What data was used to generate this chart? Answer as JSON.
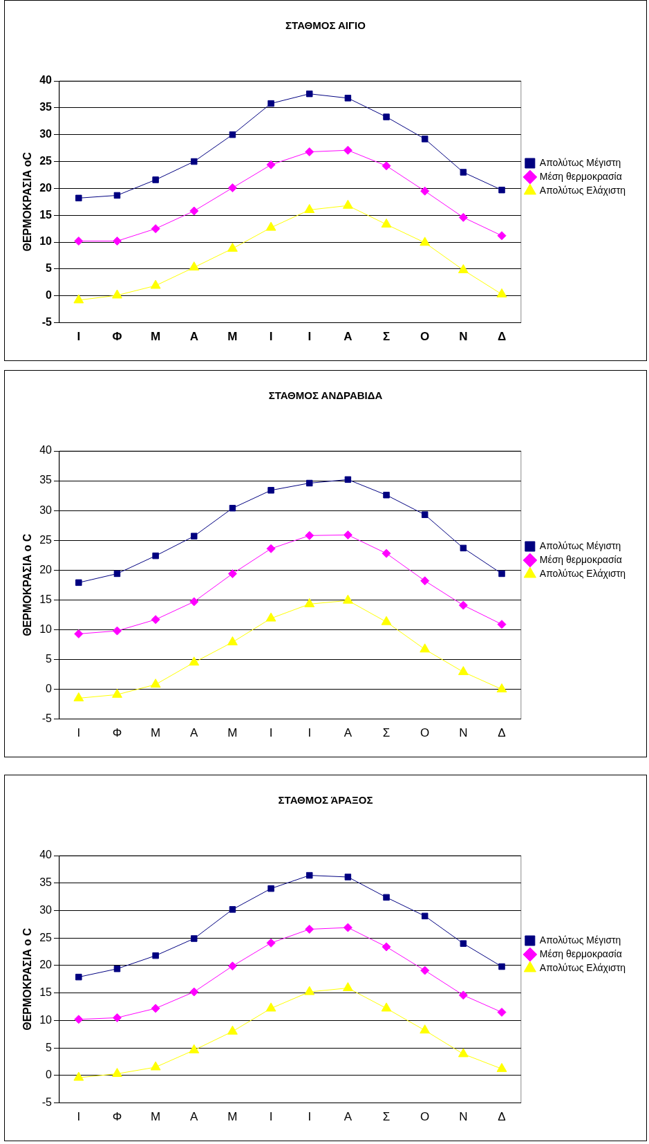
{
  "chart_data": [
    {
      "type": "line",
      "title": "ΣΤΑΘΜΟΣ ΑΙΓΙΟ",
      "ylabel": "ΘΕΡΜΟΚΡΑΣΙΑ oC",
      "categories": [
        "Ι",
        "Φ",
        "Μ",
        "Α",
        "Μ",
        "Ι",
        "Ι",
        "Α",
        "Σ",
        "Ο",
        "Ν",
        "Δ"
      ],
      "series": [
        {
          "name": "Απολύτως Μέγιστη",
          "color": "#000080",
          "marker": "square",
          "values": [
            18.2,
            18.7,
            21.6,
            25,
            30,
            35.8,
            37.6,
            36.8,
            33.3,
            29.2,
            23,
            19.7
          ]
        },
        {
          "name": "Μέση θερμοκρασία",
          "color": "#ff00ff",
          "marker": "diamond",
          "values": [
            10.2,
            10.2,
            12.5,
            15.8,
            20.1,
            24.4,
            26.8,
            27.1,
            24.2,
            19.5,
            14.6,
            11.2
          ]
        },
        {
          "name": "Απολύτως Ελάχιστη",
          "color": "#ffff00",
          "marker": "triangle",
          "values": [
            -0.8,
            0.1,
            1.9,
            5.3,
            8.8,
            12.7,
            16,
            16.8,
            13.3,
            9.9,
            4.8,
            0.3
          ]
        }
      ],
      "ylim": [
        -5,
        40
      ],
      "yticks": [
        -5,
        0,
        5,
        10,
        15,
        20,
        25,
        30,
        35,
        40
      ],
      "grid": "y",
      "legend": "right"
    },
    {
      "type": "line",
      "title": "ΣΤΑΘΜΟΣ ΑΝΔΡΑΒΙΔΑ",
      "ylabel": "ΘΕΡΜΟΚΡΑΣΙΑ o C",
      "categories": [
        "Ι",
        "Φ",
        "Μ",
        "Α",
        "Μ",
        "Ι",
        "Ι",
        "Α",
        "Σ",
        "Ο",
        "Ν",
        "Δ"
      ],
      "series": [
        {
          "name": "Απολύτως Μέγιστη",
          "color": "#000080",
          "marker": "square",
          "values": [
            17.9,
            19.4,
            22.4,
            25.7,
            30.4,
            33.4,
            34.6,
            35.2,
            32.6,
            29.3,
            23.7,
            19.4
          ]
        },
        {
          "name": "Μέση θερμοκρασία",
          "color": "#ff00ff",
          "marker": "diamond",
          "values": [
            9.3,
            9.8,
            11.7,
            14.7,
            19.4,
            23.6,
            25.8,
            25.9,
            22.8,
            18.2,
            14.1,
            10.9
          ]
        },
        {
          "name": "Απολύτως Ελάχιστη",
          "color": "#ffff00",
          "marker": "triangle",
          "values": [
            -1.5,
            -0.9,
            0.8,
            4.5,
            7.9,
            11.9,
            14.3,
            14.9,
            11.3,
            6.7,
            2.9,
            0
          ]
        }
      ],
      "ylim": [
        -5,
        40
      ],
      "yticks": [
        -5,
        0,
        5,
        10,
        15,
        20,
        25,
        30,
        35,
        40
      ],
      "grid": "y",
      "legend": "right"
    },
    {
      "type": "line",
      "title": "ΣΤΑΘΜΟΣ ΆΡΑΞΟΣ",
      "ylabel": "ΘΕΡΜΟΚΡΑΣΙΑ o C",
      "categories": [
        "Ι",
        "Φ",
        "Μ",
        "Α",
        "Μ",
        "Ι",
        "Ι",
        "Α",
        "Σ",
        "Ο",
        "Ν",
        "Δ"
      ],
      "series": [
        {
          "name": "Απολύτως Μέγιστη",
          "color": "#000080",
          "marker": "square",
          "values": [
            17.9,
            19.4,
            21.8,
            24.9,
            30.2,
            34,
            36.4,
            36.1,
            32.4,
            29,
            24,
            19.8
          ]
        },
        {
          "name": "Μέση θερμοκρασία",
          "color": "#ff00ff",
          "marker": "diamond",
          "values": [
            10.2,
            10.5,
            12.2,
            15.2,
            19.9,
            24.1,
            26.6,
            26.9,
            23.4,
            19.1,
            14.6,
            11.5
          ]
        },
        {
          "name": "Απολύτως Ελάχιστη",
          "color": "#ffff00",
          "marker": "triangle",
          "values": [
            -0.4,
            0.3,
            1.5,
            4.6,
            8,
            12.2,
            15.2,
            15.9,
            12.2,
            8.2,
            3.9,
            1.2
          ]
        }
      ],
      "ylim": [
        -5,
        40
      ],
      "yticks": [
        -5,
        0,
        5,
        10,
        15,
        20,
        25,
        30,
        35,
        40
      ],
      "grid": "y",
      "legend": "right"
    }
  ]
}
